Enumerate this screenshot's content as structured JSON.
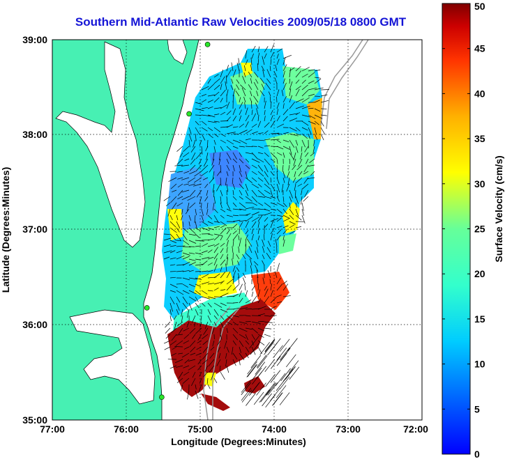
{
  "title": "Southern Mid-Atlantic Raw Velocities 2009/05/18 0800 GMT",
  "map": {
    "xlabel": "Longitude (Degrees:Minutes)",
    "ylabel": "Latitude (Degrees:Minutes)",
    "lon_ticks": [
      "77:00",
      "76:00",
      "75:00",
      "74:00",
      "73:00",
      "72:00"
    ],
    "lat_ticks": [
      "39:00",
      "38:00",
      "37:00",
      "36:00",
      "35:00"
    ],
    "lon_range": [
      -77,
      -72
    ],
    "lat_range": [
      35,
      39
    ],
    "grid": true,
    "land_color": "#47f0b3",
    "water_color": "#ffffff",
    "station_color": "#28e628",
    "stations": [
      {
        "lon": -74.9,
        "lat": 38.95
      },
      {
        "lon": -75.15,
        "lat": 38.22
      },
      {
        "lon": -75.72,
        "lat": 36.18
      },
      {
        "lon": -75.52,
        "lat": 35.24
      }
    ]
  },
  "colorbar": {
    "label": "Surface Velocity (cm/s)",
    "ticks": [
      "0",
      "5",
      "10",
      "15",
      "20",
      "25",
      "30",
      "35",
      "40",
      "45",
      "50"
    ],
    "min": 0,
    "max": 50,
    "colormap": "jet"
  }
}
